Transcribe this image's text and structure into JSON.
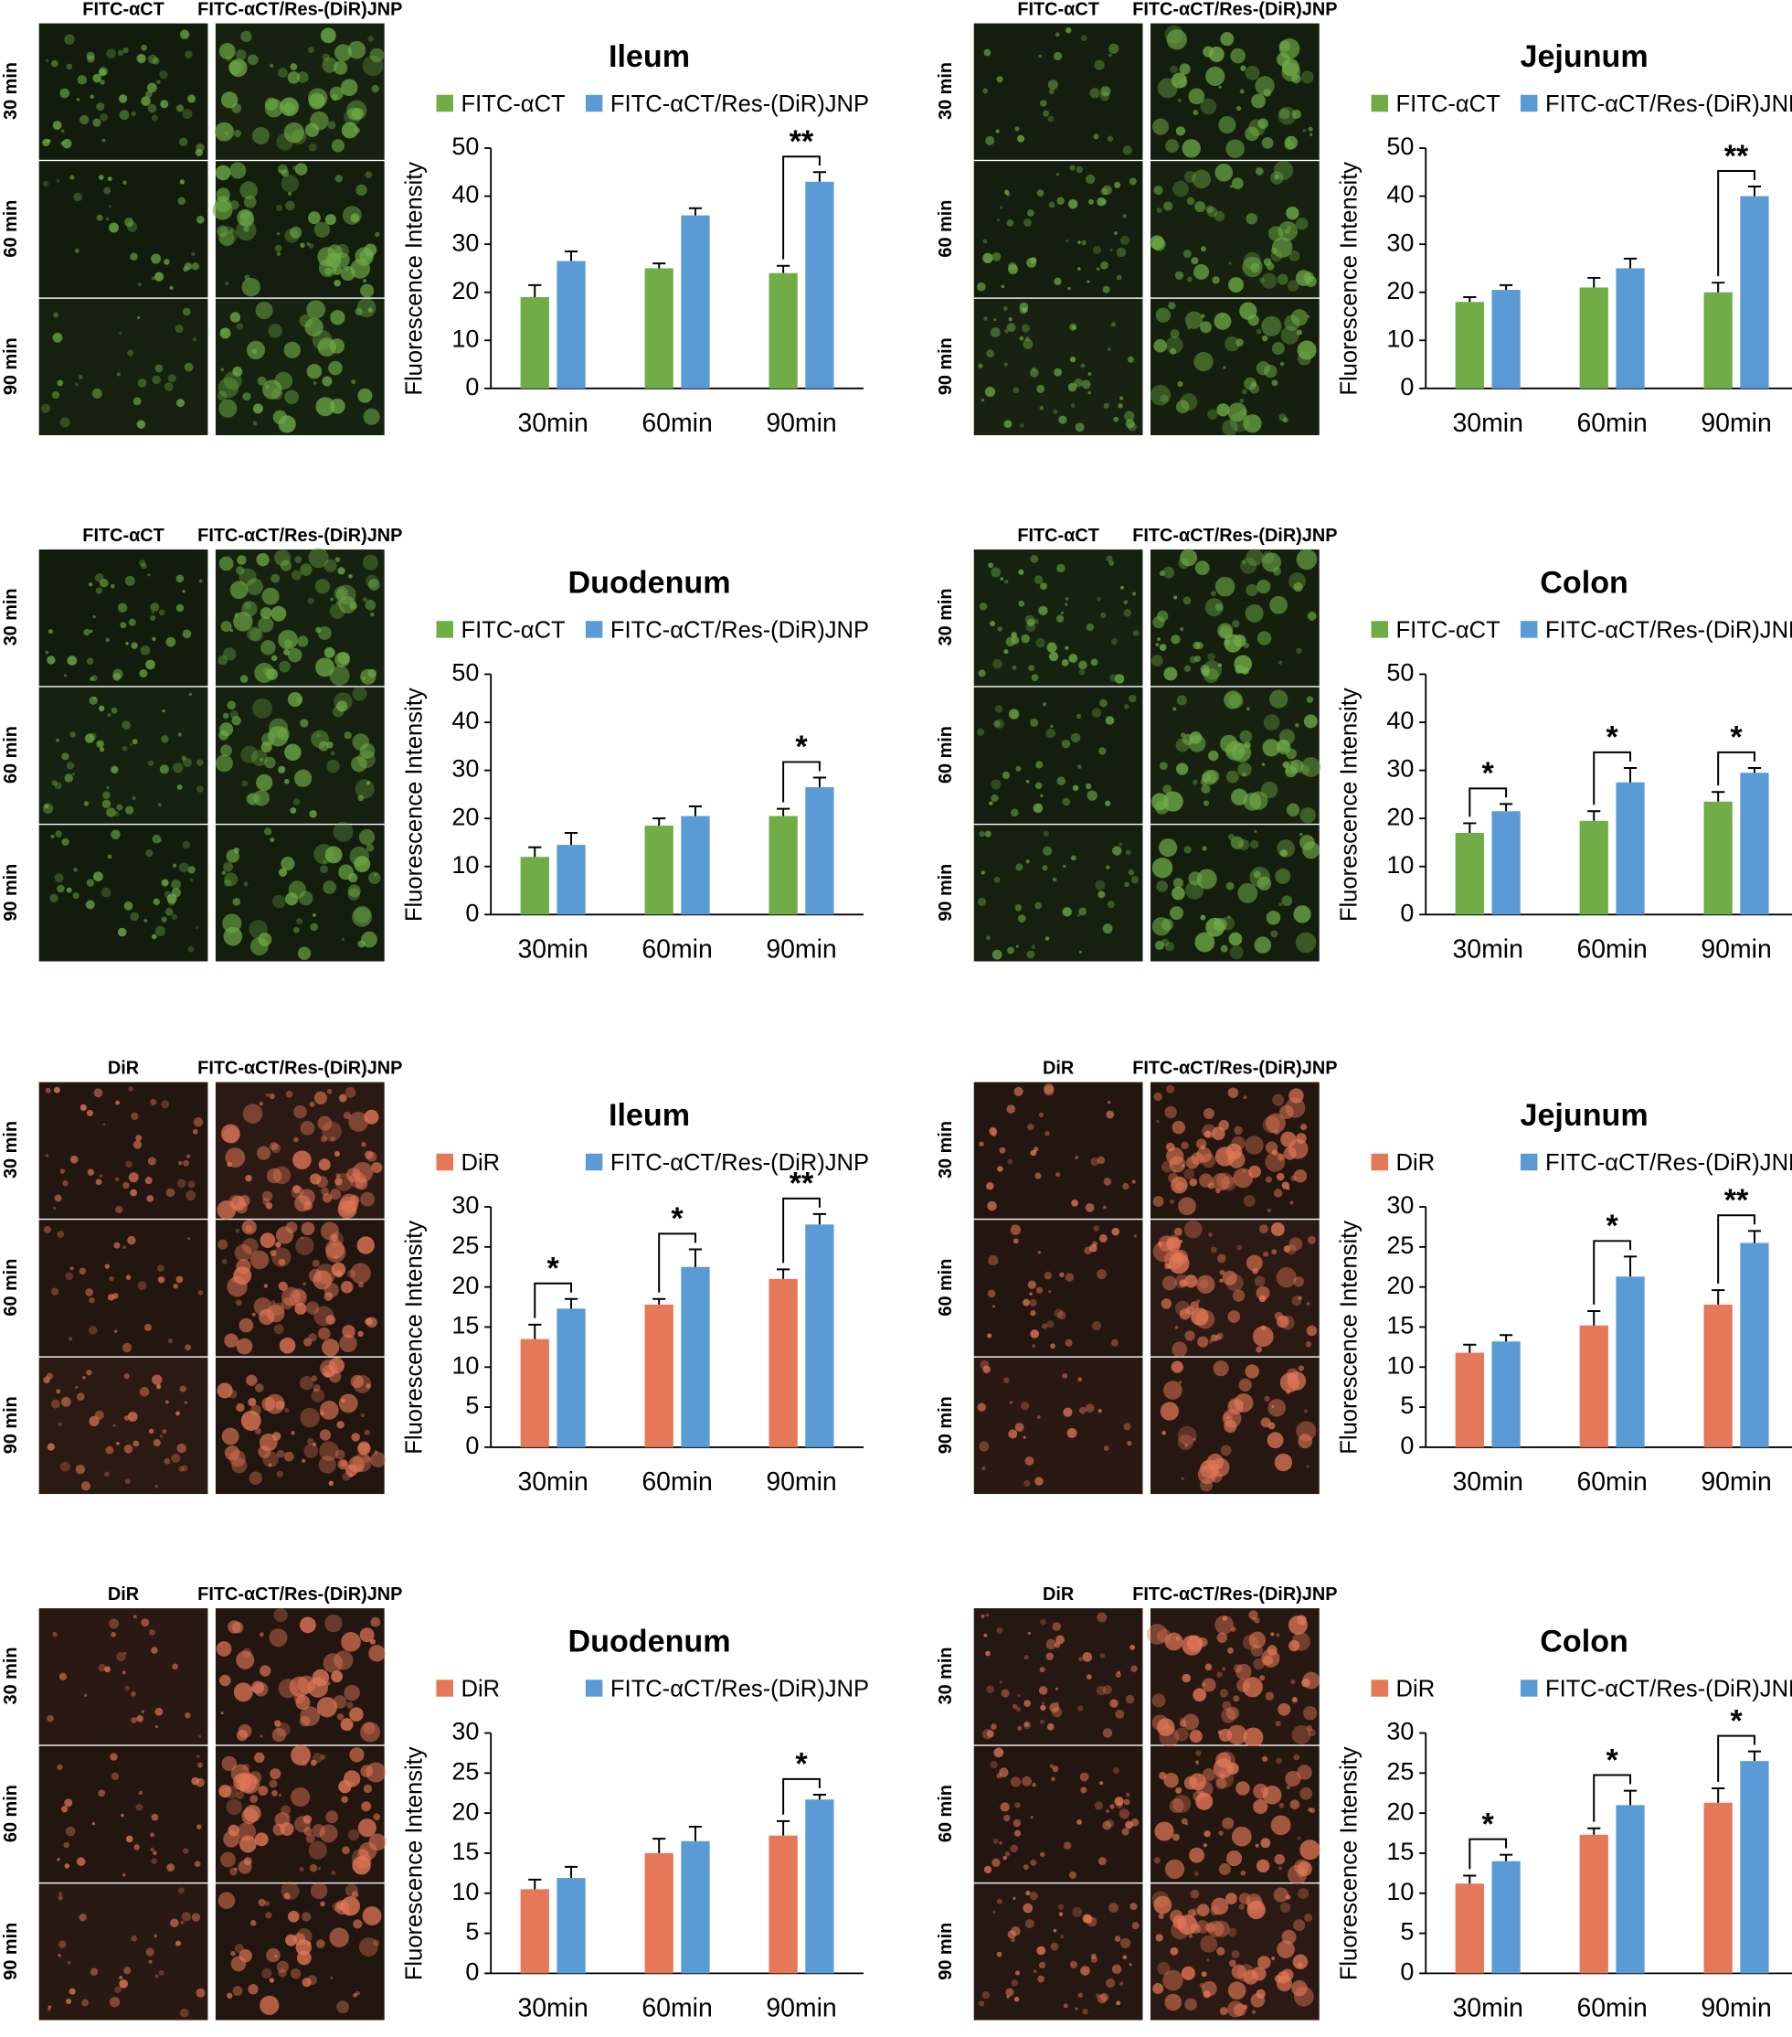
{
  "chart_data": [
    {
      "type": "bar",
      "title": "Ileum",
      "image_columns": [
        "FITC-αCT",
        "FITC-αCT/Res-(DiR)JNP"
      ],
      "image_rows": [
        "30 min",
        "60 min",
        "90 min"
      ],
      "ylabel": "Fluorescence Intensity",
      "categories": [
        "30min",
        "60min",
        "90min"
      ],
      "series": [
        {
          "name": "FITC-αCT",
          "color": "#70ad47",
          "values": [
            19,
            25,
            24
          ],
          "errors": [
            2.5,
            1,
            1.5
          ]
        },
        {
          "name": "FITC-αCT/Res-(DiR)JNP",
          "color": "#5b9bd5",
          "values": [
            26.5,
            36,
            43
          ],
          "errors": [
            2,
            1.5,
            2
          ]
        }
      ],
      "ylim": [
        0,
        50
      ],
      "yticks": [
        0,
        10,
        20,
        30,
        40,
        50
      ],
      "significance": [
        null,
        null,
        "**"
      ]
    },
    {
      "type": "bar",
      "title": "Jejunum",
      "image_columns": [
        "FITC-αCT",
        "FITC-αCT/Res-(DiR)JNP"
      ],
      "image_rows": [
        "30 min",
        "60 min",
        "90 min"
      ],
      "ylabel": "Fluorescence Intensity",
      "categories": [
        "30min",
        "60min",
        "90min"
      ],
      "series": [
        {
          "name": "FITC-αCT",
          "color": "#70ad47",
          "values": [
            18,
            21,
            20
          ],
          "errors": [
            1,
            2,
            2
          ]
        },
        {
          "name": "FITC-αCT/Res-(DiR)JNP",
          "color": "#5b9bd5",
          "values": [
            20.5,
            25,
            40
          ],
          "errors": [
            1,
            2,
            2
          ]
        }
      ],
      "ylim": [
        0,
        50
      ],
      "yticks": [
        0,
        10,
        20,
        30,
        40,
        50
      ],
      "significance": [
        null,
        null,
        "**"
      ]
    },
    {
      "type": "bar",
      "title": "Duodenum",
      "image_columns": [
        "FITC-αCT",
        "FITC-αCT/Res-(DiR)JNP"
      ],
      "image_rows": [
        "30 min",
        "60 min",
        "90 min"
      ],
      "ylabel": "Fluorescence Intensity",
      "categories": [
        "30min",
        "60min",
        "90min"
      ],
      "series": [
        {
          "name": "FITC-αCT",
          "color": "#70ad47",
          "values": [
            12,
            18.5,
            20.5
          ],
          "errors": [
            2,
            1.5,
            1.5
          ]
        },
        {
          "name": "FITC-αCT/Res-(DiR)JNP",
          "color": "#5b9bd5",
          "values": [
            14.5,
            20.5,
            26.5
          ],
          "errors": [
            2.5,
            2,
            2
          ]
        }
      ],
      "ylim": [
        0,
        50
      ],
      "yticks": [
        0,
        10,
        20,
        30,
        40,
        50
      ],
      "significance": [
        null,
        null,
        "*"
      ]
    },
    {
      "type": "bar",
      "title": "Colon",
      "image_columns": [
        "FITC-αCT",
        "FITC-αCT/Res-(DiR)JNP"
      ],
      "image_rows": [
        "30 min",
        "60 min",
        "90 min"
      ],
      "ylabel": "Fluorescence Intensity",
      "categories": [
        "30min",
        "60min",
        "90min"
      ],
      "series": [
        {
          "name": "FITC-αCT",
          "color": "#70ad47",
          "values": [
            17,
            19.5,
            23.5
          ],
          "errors": [
            2,
            2,
            2
          ]
        },
        {
          "name": "FITC-αCT/Res-(DiR)JNP",
          "color": "#5b9bd5",
          "values": [
            21.5,
            27.5,
            29.5
          ],
          "errors": [
            1.5,
            3,
            1
          ]
        }
      ],
      "ylim": [
        0,
        50
      ],
      "yticks": [
        0,
        10,
        20,
        30,
        40,
        50
      ],
      "significance": [
        "*",
        "*",
        "*"
      ]
    },
    {
      "type": "bar",
      "title": "Ileum",
      "image_columns": [
        "DiR",
        "FITC-αCT/Res-(DiR)JNP"
      ],
      "image_rows": [
        "30 min",
        "60 min",
        "90 min"
      ],
      "ylabel": "Fluorescence Intensity",
      "categories": [
        "30min",
        "60min",
        "90min"
      ],
      "series": [
        {
          "name": "DiR",
          "color": "#e57858",
          "values": [
            13.5,
            17.8,
            21
          ],
          "errors": [
            1.8,
            0.7,
            1.2
          ]
        },
        {
          "name": "FITC-αCT/Res-(DiR)JNP",
          "color": "#5b9bd5",
          "values": [
            17.3,
            22.5,
            27.8
          ],
          "errors": [
            1.2,
            2.2,
            1.3
          ]
        }
      ],
      "ylim": [
        0,
        30
      ],
      "yticks": [
        0,
        5,
        10,
        15,
        20,
        25,
        30
      ],
      "significance": [
        "*",
        "*",
        "**"
      ]
    },
    {
      "type": "bar",
      "title": "Jejunum",
      "image_columns": [
        "DiR",
        "FITC-αCT/Res-(DiR)JNP"
      ],
      "image_rows": [
        "30 min",
        "60 min",
        "90 min"
      ],
      "ylabel": "Fluorescence Intensity",
      "categories": [
        "30min",
        "60min",
        "90min"
      ],
      "series": [
        {
          "name": "DiR",
          "color": "#e57858",
          "values": [
            11.8,
            15.2,
            17.8
          ],
          "errors": [
            1,
            1.8,
            1.8
          ]
        },
        {
          "name": "FITC-αCT/Res-(DiR)JNP",
          "color": "#5b9bd5",
          "values": [
            13.2,
            21.3,
            25.5
          ],
          "errors": [
            0.8,
            2.5,
            1.5
          ]
        }
      ],
      "ylim": [
        0,
        30
      ],
      "yticks": [
        0,
        5,
        10,
        15,
        20,
        25,
        30
      ],
      "significance": [
        null,
        "*",
        "**"
      ]
    },
    {
      "type": "bar",
      "title": "Duodenum",
      "image_columns": [
        "DiR",
        "FITC-αCT/Res-(DiR)JNP"
      ],
      "image_rows": [
        "30 min",
        "60 min",
        "90 min"
      ],
      "ylabel": "Fluorescence Intensity",
      "categories": [
        "30min",
        "60min",
        "90min"
      ],
      "series": [
        {
          "name": "DiR",
          "color": "#e57858",
          "values": [
            10.5,
            15,
            17.2
          ],
          "errors": [
            1.2,
            1.8,
            1.8
          ]
        },
        {
          "name": "FITC-αCT/Res-(DiR)JNP",
          "color": "#5b9bd5",
          "values": [
            11.9,
            16.5,
            21.7
          ],
          "errors": [
            1.4,
            1.8,
            0.6
          ]
        }
      ],
      "ylim": [
        0,
        30
      ],
      "yticks": [
        0,
        5,
        10,
        15,
        20,
        25,
        30
      ],
      "significance": [
        null,
        null,
        "*"
      ]
    },
    {
      "type": "bar",
      "title": "Colon",
      "image_columns": [
        "DiR",
        "FITC-αCT/Res-(DiR)JNP"
      ],
      "image_rows": [
        "30 min",
        "60 min",
        "90 min"
      ],
      "ylabel": "Fluorescence Intensity",
      "categories": [
        "30min",
        "60min",
        "90min"
      ],
      "series": [
        {
          "name": "DiR",
          "color": "#e57858",
          "values": [
            11.2,
            17.3,
            21.3
          ],
          "errors": [
            1,
            0.8,
            1.8
          ]
        },
        {
          "name": "FITC-αCT/Res-(DiR)JNP",
          "color": "#5b9bd5",
          "values": [
            14,
            21,
            26.5
          ],
          "errors": [
            0.8,
            1.8,
            1.2
          ]
        }
      ],
      "ylim": [
        0,
        30
      ],
      "yticks": [
        0,
        5,
        10,
        15,
        20,
        25,
        30
      ],
      "significance": [
        "*",
        "*",
        "*"
      ]
    }
  ]
}
